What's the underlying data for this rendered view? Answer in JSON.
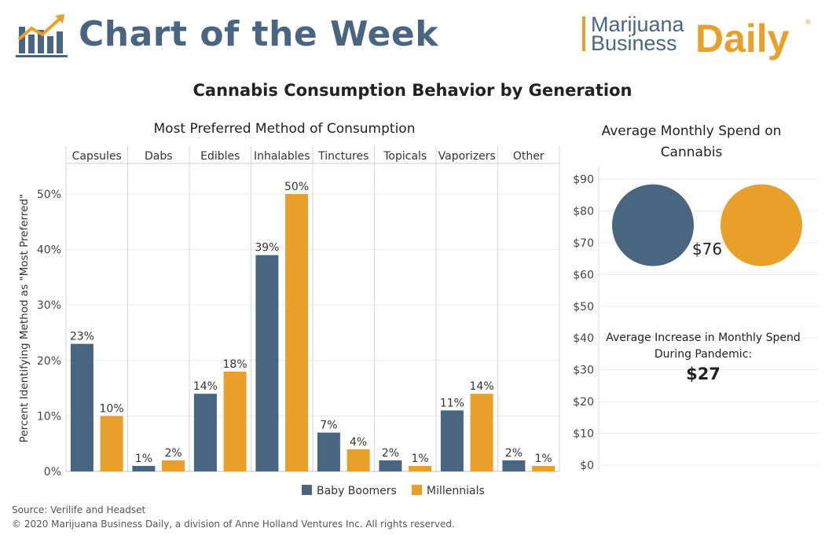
{
  "header": {
    "chart_of_week": "Chart of the Week",
    "brand_line1": "Marijuana",
    "brand_line2": "Business",
    "brand_daily": "Daily",
    "brand_reg": "®"
  },
  "title": "Cannabis Consumption Behavior by Generation",
  "colors": {
    "boomers": "#4a6580",
    "millennials": "#e8a02a",
    "brand_blue": "#4a6580",
    "brand_orange": "#e8a02a"
  },
  "chart_data": [
    {
      "type": "bar",
      "title": "Most Preferred Method of Consumption",
      "ylabel": "Percent Identifying Method as \"Most Preferred\"",
      "xlabel": "",
      "categories": [
        "Capsules",
        "Dabs",
        "Edibles",
        "Inhalables",
        "Tinctures",
        "Topicals",
        "Vaporizers",
        "Other"
      ],
      "series": [
        {
          "name": "Baby Boomers",
          "values": [
            23,
            1,
            14,
            39,
            7,
            2,
            11,
            2
          ]
        },
        {
          "name": "Millennials",
          "values": [
            10,
            2,
            18,
            50,
            4,
            1,
            14,
            1
          ]
        }
      ],
      "ylim": [
        0,
        55
      ],
      "yticks": [
        "0%",
        "10%",
        "20%",
        "30%",
        "40%",
        "50%"
      ],
      "grid": true,
      "legend_position": "bottom"
    },
    {
      "type": "scatter",
      "title": "Average Monthly Spend on Cannabis",
      "ylim": [
        0,
        90
      ],
      "yticks": [
        "$0",
        "$10",
        "$20",
        "$30",
        "$40",
        "$50",
        "$60",
        "$70",
        "$80",
        "$90"
      ],
      "series": [
        {
          "name": "Baby Boomers",
          "y": 76
        },
        {
          "name": "Millennials",
          "y": 76
        }
      ],
      "value_label": "$76",
      "annotation": {
        "label_line1": "Average Increase in Monthly Spend",
        "label_line2": "During Pandemic:",
        "value": "$27"
      }
    }
  ],
  "footer": {
    "source": "Source: Verilife and Headset",
    "copyright": "© 2020 Marijuana Business Daily, a division of Anne Holland Ventures Inc. All rights reserved."
  }
}
